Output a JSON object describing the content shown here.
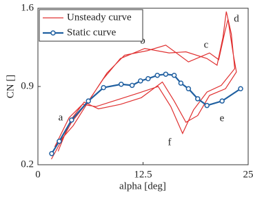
{
  "chart_data": {
    "type": "line",
    "xlabel": "alpha [deg]",
    "ylabel": "CN []",
    "xlim": [
      0,
      25
    ],
    "ylim": [
      0.2,
      1.6
    ],
    "xticks": [
      0,
      12.5,
      25
    ],
    "yticks": [
      0.2,
      0.9,
      1.6
    ],
    "legend": "upper left",
    "annotations": [
      "a",
      "b",
      "c",
      "d",
      "e",
      "f"
    ],
    "series": [
      {
        "name": "Unsteady curve",
        "color": "#e03030",
        "marker": false,
        "x": [
          1.6,
          4.0,
          6.1,
          7.8,
          9.8,
          12.7,
          15.6,
          17.6,
          20.1,
          21.3,
          22.0,
          22.4,
          23.0,
          23.4,
          21.8,
          20.1,
          18.5,
          17.2,
          15.8,
          14.3,
          11.9,
          9.4,
          6.9,
          5.3,
          3.7,
          2.0,
          4.2,
          6.3,
          8.2,
          10.3,
          13.0,
          15.2,
          17.9,
          20.4,
          21.5,
          22.2,
          22.6,
          23.2,
          23.6,
          22.3,
          20.4,
          19.0,
          17.6,
          16.2,
          14.8,
          12.3,
          9.8,
          7.2,
          5.5,
          3.9,
          2.4
        ],
        "values": [
          0.25,
          0.58,
          0.78,
          0.97,
          1.15,
          1.24,
          1.2,
          1.21,
          1.15,
          1.09,
          1.34,
          1.57,
          1.37,
          1.06,
          0.91,
          0.85,
          0.69,
          0.48,
          0.72,
          0.9,
          0.84,
          0.78,
          0.72,
          0.74,
          0.62,
          0.36,
          0.55,
          0.8,
          1.02,
          1.18,
          1.22,
          1.27,
          1.12,
          1.2,
          1.14,
          1.38,
          1.5,
          1.2,
          1.03,
          0.88,
          0.82,
          0.64,
          0.58,
          0.77,
          0.94,
          0.8,
          0.74,
          0.7,
          0.76,
          0.6,
          0.32
        ]
      },
      {
        "name": "Static curve",
        "color": "#1f5fa0",
        "marker": true,
        "x": [
          1.64,
          2.54,
          4.0,
          6.0,
          7.8,
          9.9,
          11.2,
          12.2,
          13.1,
          14.2,
          15.2,
          16.2,
          17.0,
          17.9,
          19.0,
          20.1,
          21.9,
          24.1
        ],
        "values": [
          0.3,
          0.41,
          0.6,
          0.77,
          0.89,
          0.92,
          0.91,
          0.95,
          0.97,
          1.0,
          1.01,
          1.0,
          0.93,
          0.88,
          0.79,
          0.73,
          0.77,
          0.88
        ]
      }
    ]
  }
}
